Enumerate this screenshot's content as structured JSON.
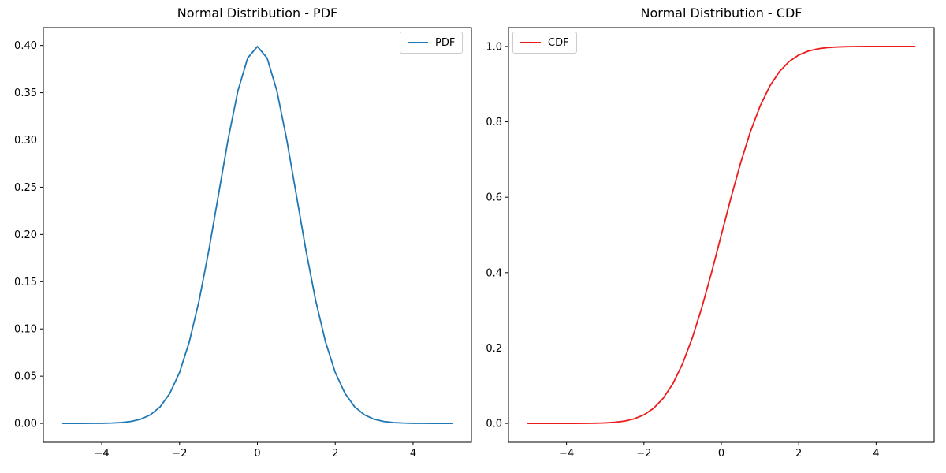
{
  "figure": {
    "background": "#ffffff"
  },
  "chart_data": [
    {
      "type": "line",
      "series_name": "pdf",
      "title": "Normal Distribution - PDF",
      "legend_label": "PDF",
      "legend_position": "upper right",
      "color": "#1f77b4",
      "line_width": 1.8,
      "grid": false,
      "xlabel": "",
      "ylabel": "",
      "xlim": [
        -5.5,
        5.5
      ],
      "ylim": [
        -0.01995,
        0.41889
      ],
      "xticks": [
        -4,
        -2,
        0,
        2,
        4
      ],
      "xtick_labels": [
        "−4",
        "−2",
        "0",
        "2",
        "4"
      ],
      "yticks": [
        0,
        0.05,
        0.1,
        0.15,
        0.2,
        0.25,
        0.3,
        0.35,
        0.4
      ],
      "ytick_labels": [
        "0.00",
        "0.05",
        "0.10",
        "0.15",
        "0.20",
        "0.25",
        "0.30",
        "0.35",
        "0.40"
      ],
      "x": [
        -5,
        -4.75,
        -4.5,
        -4.25,
        -4,
        -3.75,
        -3.5,
        -3.25,
        -3,
        -2.75,
        -2.5,
        -2.25,
        -2,
        -1.75,
        -1.5,
        -1.25,
        -1,
        -0.75,
        -0.5,
        -0.25,
        0,
        0.25,
        0.5,
        0.75,
        1,
        1.25,
        1.5,
        1.75,
        2,
        2.25,
        2.5,
        2.75,
        3,
        3.25,
        3.5,
        3.75,
        4,
        4.25,
        4.5,
        4.75,
        5
      ],
      "y": [
        1.5e-06,
        5e-06,
        1.6e-05,
        4.8e-05,
        0.000134,
        0.000353,
        0.000873,
        0.00203,
        0.004432,
        0.00909,
        0.017528,
        0.03174,
        0.053991,
        0.086277,
        0.129518,
        0.182649,
        0.241971,
        0.301137,
        0.352065,
        0.386668,
        0.398942,
        0.386668,
        0.352065,
        0.301137,
        0.241971,
        0.182649,
        0.129518,
        0.086277,
        0.053991,
        0.03174,
        0.017528,
        0.00909,
        0.004432,
        0.00203,
        0.000873,
        0.000353,
        0.000134,
        4.8e-05,
        1.6e-05,
        5e-06,
        1.5e-06
      ]
    },
    {
      "type": "line",
      "series_name": "cdf",
      "title": "Normal Distribution - CDF",
      "legend_label": "CDF",
      "legend_position": "upper left",
      "color": "#ed1c1c",
      "line_width": 1.8,
      "grid": false,
      "xlabel": "",
      "ylabel": "",
      "xlim": [
        -5.5,
        5.5
      ],
      "ylim": [
        -0.05,
        1.05
      ],
      "xticks": [
        -4,
        -2,
        0,
        2,
        4
      ],
      "xtick_labels": [
        "−4",
        "−2",
        "0",
        "2",
        "4"
      ],
      "yticks": [
        0,
        0.2,
        0.4,
        0.6,
        0.8,
        1.0
      ],
      "ytick_labels": [
        "0.0",
        "0.2",
        "0.4",
        "0.6",
        "0.8",
        "1.0"
      ],
      "x": [
        -5,
        -4.75,
        -4.5,
        -4.25,
        -4,
        -3.75,
        -3.5,
        -3.25,
        -3,
        -2.75,
        -2.5,
        -2.25,
        -2,
        -1.75,
        -1.5,
        -1.25,
        -1,
        -0.75,
        -0.5,
        -0.25,
        0,
        0.25,
        0.5,
        0.75,
        1,
        1.25,
        1.5,
        1.75,
        2,
        2.25,
        2.5,
        2.75,
        3,
        3.25,
        3.5,
        3.75,
        4,
        4.25,
        4.5,
        4.75,
        5
      ],
      "y": [
        3e-07,
        1e-06,
        3.4e-06,
        1.07e-05,
        3.17e-05,
        8.84e-05,
        0.000233,
        0.000577,
        0.00135,
        0.00298,
        0.00621,
        0.01222,
        0.02275,
        0.04006,
        0.06681,
        0.10565,
        0.15866,
        0.22663,
        0.30854,
        0.40129,
        0.5,
        0.59871,
        0.69146,
        0.77337,
        0.84134,
        0.89435,
        0.93319,
        0.95994,
        0.97725,
        0.98778,
        0.99379,
        0.99702,
        0.99865,
        0.99942,
        0.99977,
        0.99991,
        0.999968,
        0.999989,
        0.999997,
        0.999999,
        0.9999997
      ]
    }
  ]
}
